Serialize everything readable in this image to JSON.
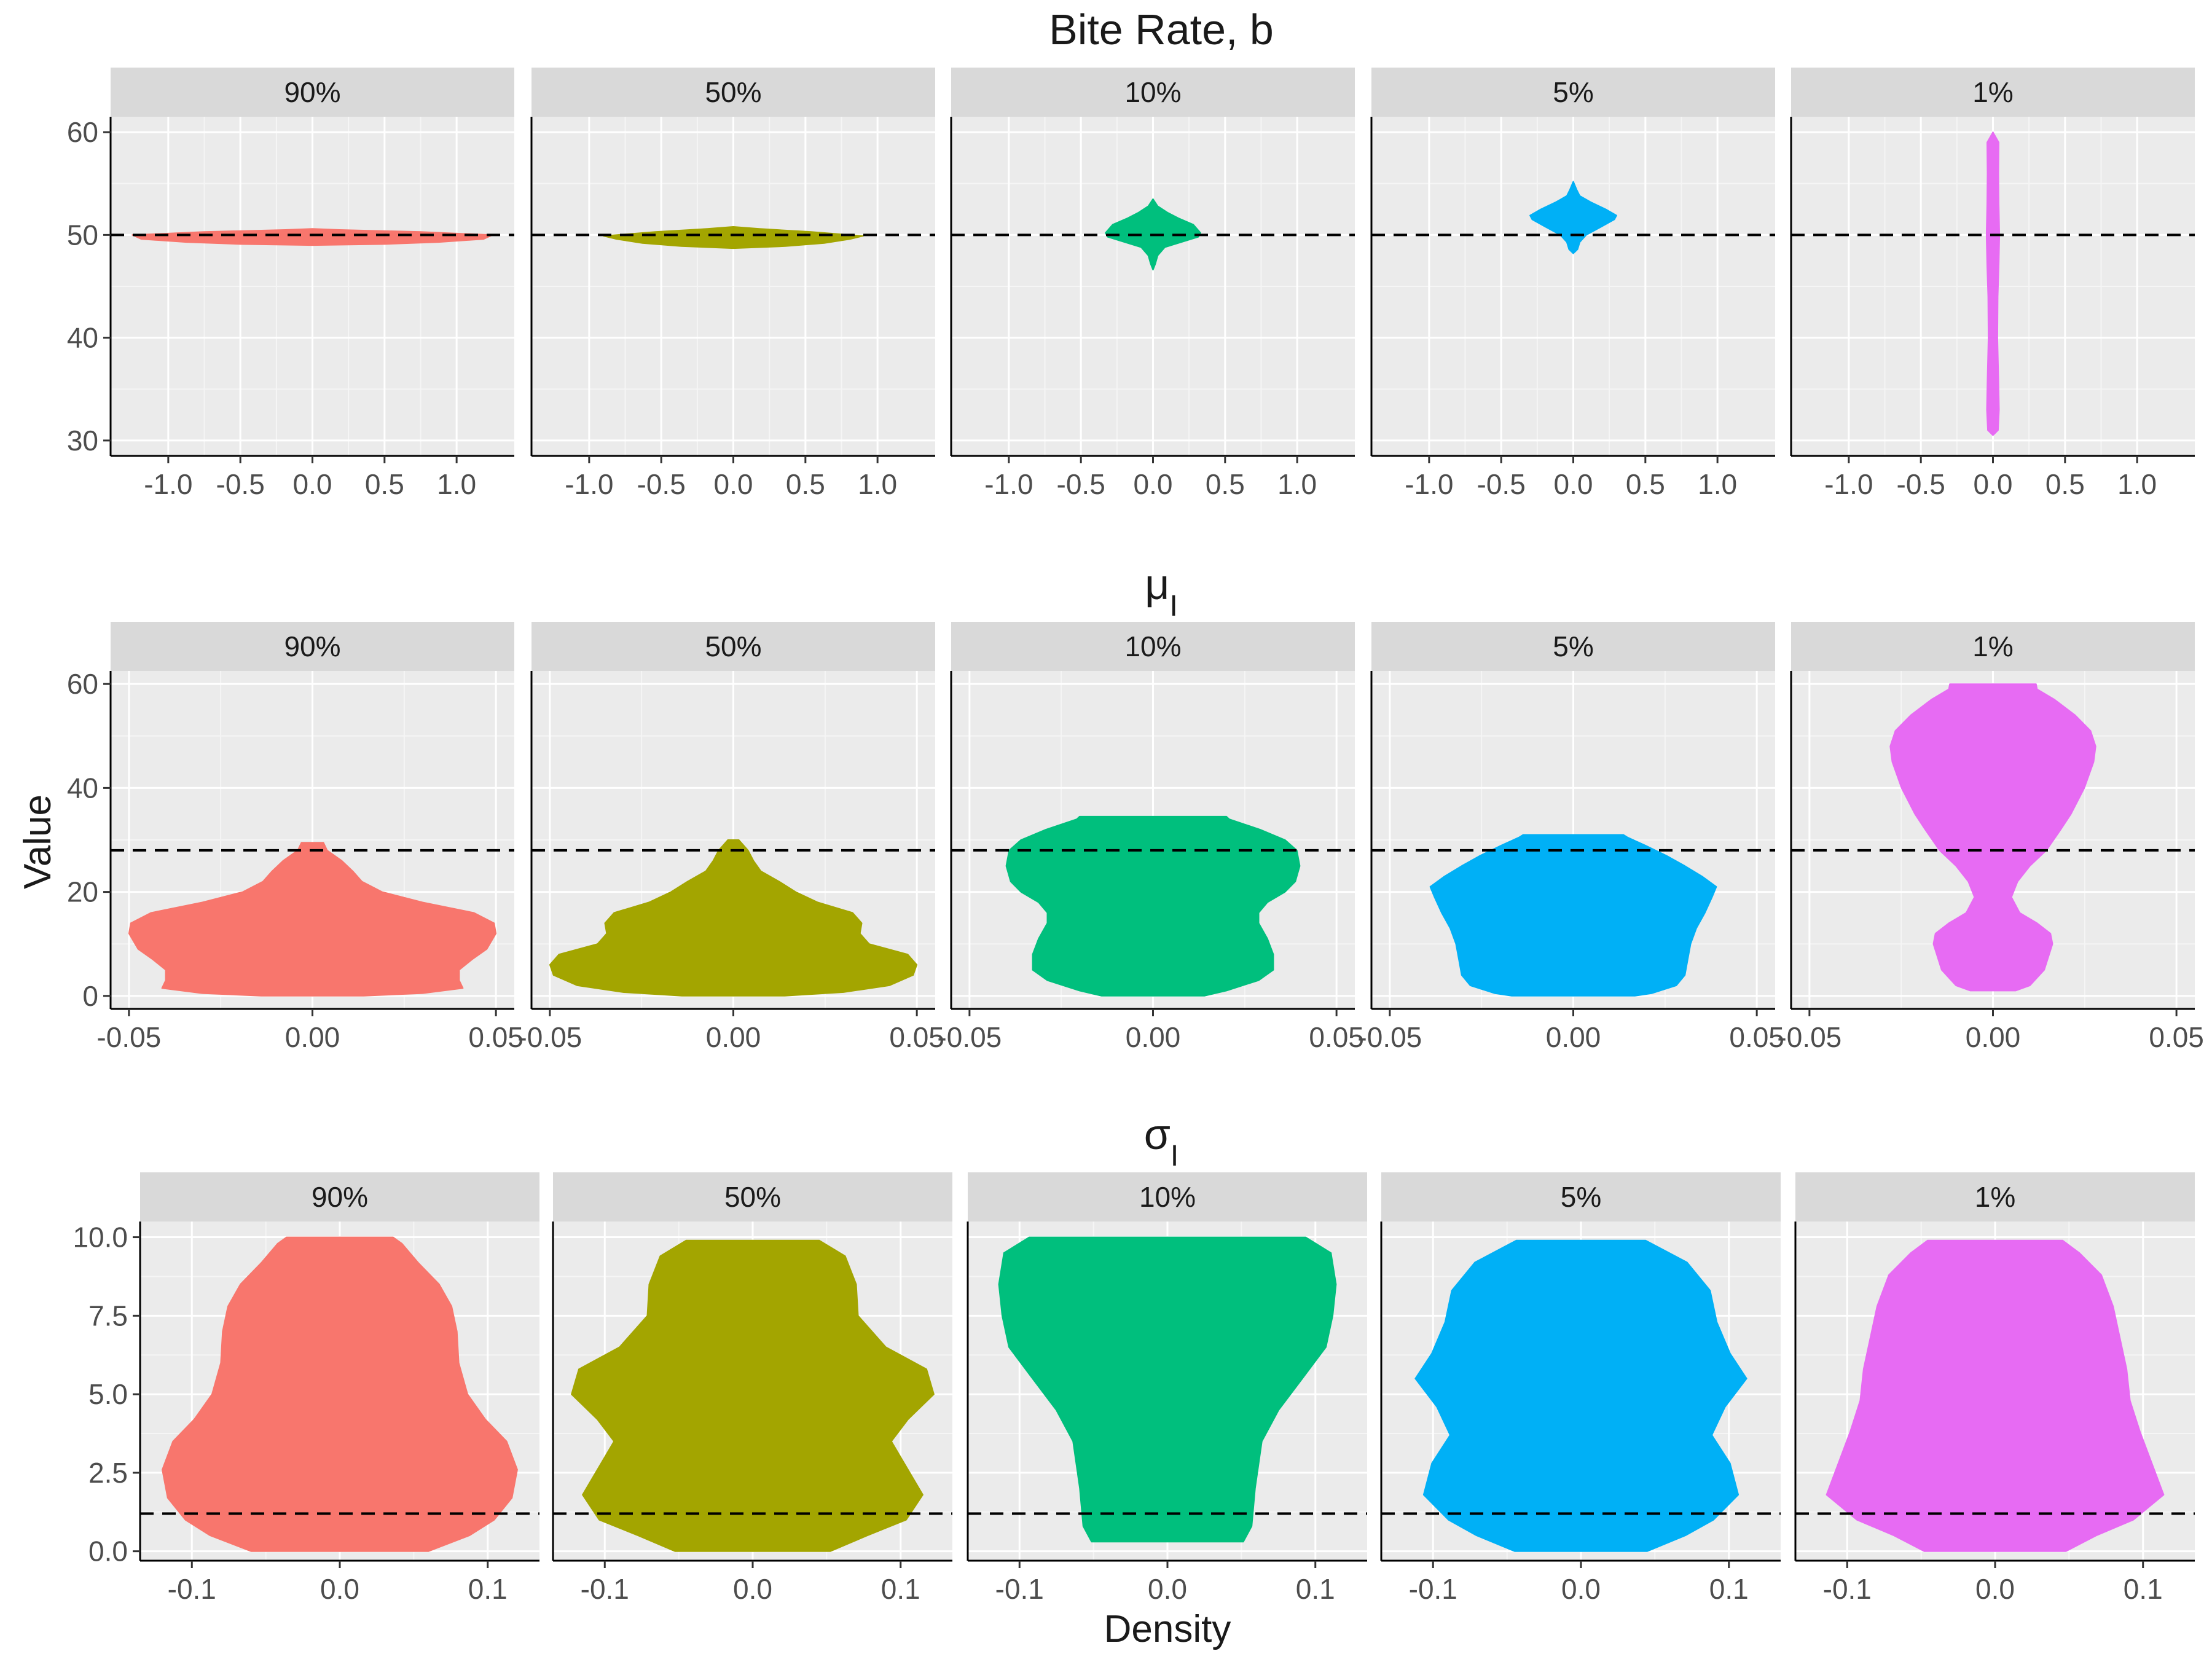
{
  "figure": {
    "xlabel": "Density",
    "ylabel": "Value"
  },
  "colors": {
    "90%": "#F8766D",
    "50%": "#A3A500",
    "10%": "#00BF7D",
    "5%": "#00B0F6",
    "1%": "#E76BF3"
  },
  "chart_data": [
    {
      "type": "violin",
      "title": "Bite Rate, b",
      "title_main": "Bite Rate, b",
      "title_sub": "",
      "xlabel": "",
      "ylabel": "",
      "xlim": [
        -1.4,
        1.4
      ],
      "ylim": [
        28.5,
        61.5
      ],
      "xticks": [
        "-1.0",
        "-0.5",
        "0.0",
        "0.5",
        "1.0"
      ],
      "xtick_values": [
        -1.0,
        -0.5,
        0.0,
        0.5,
        1.0
      ],
      "yticks": [
        "30",
        "40",
        "50",
        "60"
      ],
      "ytick_values": [
        30,
        40,
        50,
        60
      ],
      "reference_line": 50,
      "panels": [
        {
          "name": "90%",
          "max_width": 1.25,
          "profile": [
            [
              49.0,
              0.0
            ],
            [
              49.1,
              0.4
            ],
            [
              49.3,
              0.7
            ],
            [
              49.6,
              0.95
            ],
            [
              50.0,
              1.0
            ],
            [
              50.3,
              0.6
            ],
            [
              50.5,
              0.15
            ],
            [
              50.6,
              0.0
            ]
          ]
        },
        {
          "name": "50%",
          "max_width": 0.9,
          "profile": [
            [
              48.7,
              0.0
            ],
            [
              48.9,
              0.4
            ],
            [
              49.2,
              0.7
            ],
            [
              49.6,
              0.9
            ],
            [
              49.9,
              1.0
            ],
            [
              50.3,
              0.6
            ],
            [
              50.6,
              0.2
            ],
            [
              50.8,
              0.0
            ]
          ]
        },
        {
          "name": "10%",
          "max_width": 0.33,
          "profile": [
            [
              46.6,
              0.0
            ],
            [
              47.2,
              0.05
            ],
            [
              48.0,
              0.1
            ],
            [
              48.8,
              0.25
            ],
            [
              49.3,
              0.6
            ],
            [
              49.8,
              0.95
            ],
            [
              50.2,
              1.0
            ],
            [
              51.0,
              0.85
            ],
            [
              51.6,
              0.55
            ],
            [
              52.2,
              0.3
            ],
            [
              52.8,
              0.1
            ],
            [
              53.5,
              0.0
            ]
          ]
        },
        {
          "name": "5%",
          "max_width": 0.3,
          "profile": [
            [
              48.2,
              0.0
            ],
            [
              48.6,
              0.1
            ],
            [
              49.3,
              0.15
            ],
            [
              50.0,
              0.3
            ],
            [
              50.8,
              0.65
            ],
            [
              51.5,
              0.95
            ],
            [
              51.9,
              1.0
            ],
            [
              52.5,
              0.75
            ],
            [
              53.2,
              0.4
            ],
            [
              53.8,
              0.15
            ],
            [
              54.4,
              0.08
            ],
            [
              55.2,
              0.0
            ]
          ]
        },
        {
          "name": "1%",
          "max_width": 0.045,
          "profile": [
            [
              30.5,
              0.0
            ],
            [
              31.0,
              0.8
            ],
            [
              33.0,
              0.95
            ],
            [
              36.0,
              0.85
            ],
            [
              40.0,
              0.7
            ],
            [
              44.0,
              0.75
            ],
            [
              47.0,
              0.9
            ],
            [
              50.0,
              1.0
            ],
            [
              53.0,
              0.9
            ],
            [
              56.0,
              0.85
            ],
            [
              59.0,
              0.9
            ],
            [
              60.0,
              0.0
            ]
          ]
        }
      ]
    },
    {
      "type": "violin",
      "title": "μ_I",
      "title_main": "μ",
      "title_sub": "I",
      "xlabel": "",
      "ylabel": "Value",
      "xlim": [
        -0.055,
        0.055
      ],
      "ylim": [
        -2.5,
        62.5
      ],
      "xticks": [
        "-0.05",
        "0.00",
        "0.05"
      ],
      "xtick_values": [
        -0.05,
        0.0,
        0.05
      ],
      "yticks": [
        "0",
        "20",
        "40",
        "60"
      ],
      "ytick_values": [
        0,
        20,
        40,
        60
      ],
      "reference_line": 28,
      "panels": [
        {
          "name": "90%",
          "max_width": 0.05,
          "profile": [
            [
              0,
              0.28
            ],
            [
              0.5,
              0.6
            ],
            [
              1.5,
              0.82
            ],
            [
              3,
              0.8
            ],
            [
              5,
              0.8
            ],
            [
              7,
              0.87
            ],
            [
              9,
              0.95
            ],
            [
              12,
              1.0
            ],
            [
              14,
              0.99
            ],
            [
              16,
              0.88
            ],
            [
              18,
              0.6
            ],
            [
              20,
              0.38
            ],
            [
              22,
              0.27
            ],
            [
              24,
              0.22
            ],
            [
              26,
              0.16
            ],
            [
              28,
              0.08
            ],
            [
              29.5,
              0.06
            ]
          ]
        },
        {
          "name": "50%",
          "max_width": 0.05,
          "profile": [
            [
              0,
              0.28
            ],
            [
              0.7,
              0.6
            ],
            [
              2,
              0.85
            ],
            [
              4,
              0.98
            ],
            [
              6,
              1.0
            ],
            [
              8,
              0.95
            ],
            [
              10,
              0.74
            ],
            [
              12,
              0.69
            ],
            [
              14,
              0.7
            ],
            [
              16,
              0.65
            ],
            [
              18,
              0.46
            ],
            [
              20,
              0.34
            ],
            [
              22,
              0.25
            ],
            [
              24,
              0.15
            ],
            [
              26,
              0.11
            ],
            [
              28,
              0.08
            ],
            [
              30,
              0.03
            ]
          ]
        },
        {
          "name": "10%",
          "max_width": 0.04,
          "profile": [
            [
              0,
              0.35
            ],
            [
              1,
              0.5
            ],
            [
              3,
              0.72
            ],
            [
              5,
              0.82
            ],
            [
              8,
              0.82
            ],
            [
              11,
              0.78
            ],
            [
              14,
              0.72
            ],
            [
              16,
              0.72
            ],
            [
              18,
              0.78
            ],
            [
              20,
              0.9
            ],
            [
              22,
              0.97
            ],
            [
              25,
              1.0
            ],
            [
              28,
              0.98
            ],
            [
              30,
              0.9
            ],
            [
              32,
              0.73
            ],
            [
              34,
              0.52
            ],
            [
              34.5,
              0.5
            ]
          ]
        },
        {
          "name": "5%",
          "max_width": 0.039,
          "profile": [
            [
              0,
              0.43
            ],
            [
              0.5,
              0.55
            ],
            [
              2,
              0.72
            ],
            [
              4,
              0.78
            ],
            [
              7,
              0.8
            ],
            [
              10,
              0.82
            ],
            [
              13,
              0.86
            ],
            [
              16,
              0.92
            ],
            [
              19,
              0.97
            ],
            [
              21,
              1.0
            ],
            [
              23,
              0.9
            ],
            [
              25,
              0.78
            ],
            [
              27,
              0.65
            ],
            [
              29,
              0.5
            ],
            [
              30.5,
              0.38
            ],
            [
              31,
              0.35
            ]
          ]
        },
        {
          "name": "1%",
          "max_width": 0.028,
          "profile": [
            [
              1,
              0.22
            ],
            [
              2,
              0.36
            ],
            [
              5,
              0.5
            ],
            [
              10,
              0.58
            ],
            [
              12,
              0.56
            ],
            [
              14,
              0.43
            ],
            [
              16,
              0.26
            ],
            [
              19,
              0.18
            ],
            [
              22,
              0.24
            ],
            [
              25,
              0.36
            ],
            [
              28,
              0.52
            ],
            [
              32,
              0.66
            ],
            [
              35,
              0.76
            ],
            [
              40,
              0.89
            ],
            [
              45,
              0.98
            ],
            [
              48,
              1.0
            ],
            [
              51,
              0.95
            ],
            [
              54,
              0.8
            ],
            [
              57,
              0.6
            ],
            [
              59,
              0.43
            ],
            [
              60,
              0.42
            ]
          ]
        }
      ]
    },
    {
      "type": "violin",
      "title": "σ_I",
      "title_main": "σ",
      "title_sub": "I",
      "xlabel": "Density",
      "ylabel": "",
      "xlim": [
        -0.135,
        0.135
      ],
      "ylim": [
        -0.3,
        10.5
      ],
      "xticks": [
        "-0.1",
        "0.0",
        "0.1"
      ],
      "xtick_values": [
        -0.1,
        0.0,
        0.1
      ],
      "yticks": [
        "0.0",
        "2.5",
        "5.0",
        "7.5",
        "10.0"
      ],
      "ytick_values": [
        0.0,
        2.5,
        5.0,
        7.5,
        10.0
      ],
      "reference_line": 1.2,
      "panels": [
        {
          "name": "90%",
          "max_width": 0.12,
          "profile": [
            [
              0,
              0.5
            ],
            [
              0.5,
              0.73
            ],
            [
              1,
              0.87
            ],
            [
              1.7,
              0.97
            ],
            [
              2.6,
              1.0
            ],
            [
              3.5,
              0.94
            ],
            [
              4.2,
              0.82
            ],
            [
              5,
              0.72
            ],
            [
              6,
              0.67
            ],
            [
              7,
              0.66
            ],
            [
              7.8,
              0.63
            ],
            [
              8.5,
              0.56
            ],
            [
              9.2,
              0.44
            ],
            [
              9.8,
              0.35
            ],
            [
              10,
              0.3
            ]
          ]
        },
        {
          "name": "50%",
          "max_width": 0.125,
          "profile": [
            [
              0,
              0.42
            ],
            [
              0.5,
              0.62
            ],
            [
              1,
              0.83
            ],
            [
              1.8,
              0.92
            ],
            [
              2.8,
              0.82
            ],
            [
              3.5,
              0.75
            ],
            [
              4.2,
              0.84
            ],
            [
              5,
              0.98
            ],
            [
              5.8,
              0.94
            ],
            [
              6.5,
              0.72
            ],
            [
              7.5,
              0.57
            ],
            [
              8.5,
              0.56
            ],
            [
              9.4,
              0.5
            ],
            [
              9.9,
              0.36
            ]
          ]
        },
        {
          "name": "10%",
          "max_width": 0.114,
          "profile": [
            [
              0.3,
              0.45
            ],
            [
              0.8,
              0.5
            ],
            [
              2,
              0.52
            ],
            [
              3.5,
              0.56
            ],
            [
              4.5,
              0.66
            ],
            [
              5.5,
              0.8
            ],
            [
              6.5,
              0.94
            ],
            [
              7.5,
              0.98
            ],
            [
              8.5,
              1.0
            ],
            [
              9.5,
              0.97
            ],
            [
              10,
              0.82
            ]
          ]
        },
        {
          "name": "5%",
          "max_width": 0.112,
          "profile": [
            [
              0,
              0.4
            ],
            [
              0.5,
              0.63
            ],
            [
              1,
              0.8
            ],
            [
              1.8,
              0.95
            ],
            [
              2.8,
              0.9
            ],
            [
              3.7,
              0.79
            ],
            [
              4.6,
              0.87
            ],
            [
              5.5,
              1.0
            ],
            [
              6.3,
              0.9
            ],
            [
              7.3,
              0.82
            ],
            [
              8.3,
              0.78
            ],
            [
              9.2,
              0.64
            ],
            [
              9.9,
              0.39
            ]
          ]
        },
        {
          "name": "1%",
          "max_width": 0.114,
          "profile": [
            [
              0,
              0.42
            ],
            [
              0.5,
              0.6
            ],
            [
              1,
              0.82
            ],
            [
              1.8,
              1.0
            ],
            [
              2.8,
              0.93
            ],
            [
              3.8,
              0.86
            ],
            [
              4.8,
              0.8
            ],
            [
              5.8,
              0.78
            ],
            [
              6.8,
              0.74
            ],
            [
              7.8,
              0.7
            ],
            [
              8.8,
              0.63
            ],
            [
              9.5,
              0.5
            ],
            [
              9.9,
              0.4
            ]
          ]
        }
      ]
    }
  ]
}
